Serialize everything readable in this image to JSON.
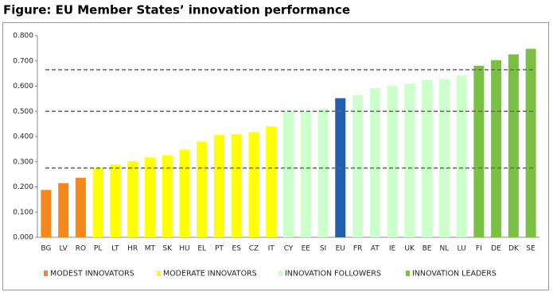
{
  "chart_data": {
    "type": "bar",
    "title": "Figure: EU Member States’ innovation performance",
    "categories": [
      "BG",
      "LV",
      "RO",
      "PL",
      "LT",
      "HR",
      "MT",
      "SK",
      "HU",
      "EL",
      "PT",
      "ES",
      "CZ",
      "IT",
      "CY",
      "EE",
      "SI",
      "EU",
      "FR",
      "AT",
      "IE",
      "UK",
      "BE",
      "NL",
      "LU",
      "FI",
      "DE",
      "DK",
      "SE"
    ],
    "values": [
      0.188,
      0.215,
      0.236,
      0.275,
      0.289,
      0.302,
      0.317,
      0.326,
      0.348,
      0.38,
      0.406,
      0.41,
      0.417,
      0.44,
      0.497,
      0.497,
      0.51,
      0.552,
      0.564,
      0.592,
      0.601,
      0.61,
      0.625,
      0.628,
      0.642,
      0.681,
      0.703,
      0.726,
      0.748
    ],
    "colors": [
      "#f7861b",
      "#f7861b",
      "#f7861b",
      "#ffff00",
      "#ffff00",
      "#ffff00",
      "#ffff00",
      "#ffff00",
      "#ffff00",
      "#ffff00",
      "#ffff00",
      "#ffff00",
      "#ffff00",
      "#ffff00",
      "#ccffcc",
      "#ccffcc",
      "#ccffcc",
      "#1f5fad",
      "#ccffcc",
      "#ccffcc",
      "#ccffcc",
      "#ccffcc",
      "#ccffcc",
      "#ccffcc",
      "#ccffcc",
      "#7ac142",
      "#7ac142",
      "#7ac142",
      "#7ac142"
    ],
    "legend": [
      {
        "name": "MODEST INNOVATORS",
        "color": "#f7861b"
      },
      {
        "name": "MODERATE INNOVATORS",
        "color": "#ffff00"
      },
      {
        "name": "INNOVATION FOLLOWERS",
        "color": "#ccffcc"
      },
      {
        "name": "INNOVATION LEADERS",
        "color": "#7ac142"
      }
    ],
    "reference_lines": [
      0.665,
      0.5,
      0.275
    ],
    "ylim": [
      0,
      0.8
    ],
    "yticks": [
      {
        "value": 0,
        "label": "0.000"
      },
      {
        "value": 0.1,
        "label": "0.100"
      },
      {
        "value": 0.2,
        "label": "0.200"
      },
      {
        "value": 0.3,
        "label": "0.300"
      },
      {
        "value": 0.4,
        "label": "0.400"
      },
      {
        "value": 0.5,
        "label": "0.500"
      },
      {
        "value": 0.6,
        "label": "0.600"
      },
      {
        "value": 0.7,
        "label": "0.700"
      },
      {
        "value": 0.8,
        "label": "0.800"
      }
    ]
  }
}
